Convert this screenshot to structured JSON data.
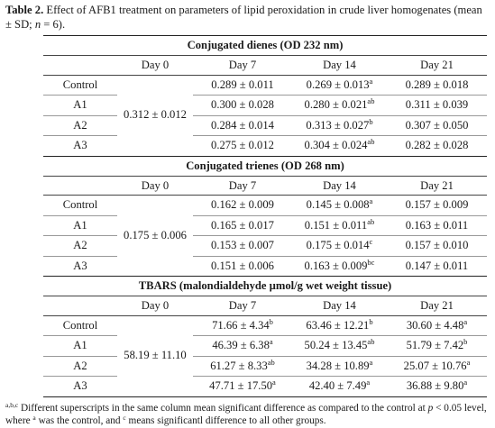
{
  "caption": {
    "label": "Table 2.",
    "text_part1": " Effect of AFB1 treatment on parameters of lipid peroxidation in crude liver homogenates (mean ± SD; ",
    "n_symbol": "n",
    "text_part2": " = 6)."
  },
  "columns": [
    "Day 0",
    "Day 7",
    "Day 14",
    "Day 21"
  ],
  "sections": [
    {
      "title": "Conjugated dienes (OD 232 nm)",
      "day0": "0.312 ± 0.012",
      "rows": [
        {
          "label": "Control",
          "d7": "0.289 ± 0.011",
          "d7s": "",
          "d14": "0.269 ± 0.013",
          "d14s": "a",
          "d21": "0.289 ± 0.018",
          "d21s": ""
        },
        {
          "label": "A1",
          "d7": "0.300 ± 0.028",
          "d7s": "",
          "d14": "0.280 ± 0.021",
          "d14s": "ab",
          "d21": "0.311 ± 0.039",
          "d21s": ""
        },
        {
          "label": "A2",
          "d7": "0.284 ± 0.014",
          "d7s": "",
          "d14": "0.313 ± 0.027",
          "d14s": "b",
          "d21": "0.307 ± 0.050",
          "d21s": ""
        },
        {
          "label": "A3",
          "d7": "0.275 ± 0.012",
          "d7s": "",
          "d14": "0.304 ± 0.024",
          "d14s": "ab",
          "d21": "0.282 ± 0.028",
          "d21s": ""
        }
      ]
    },
    {
      "title": "Conjugated trienes (OD 268 nm)",
      "day0": "0.175 ± 0.006",
      "rows": [
        {
          "label": "Control",
          "d7": "0.162 ± 0.009",
          "d7s": "",
          "d14": "0.145 ± 0.008",
          "d14s": "a",
          "d21": "0.157 ± 0.009",
          "d21s": ""
        },
        {
          "label": "A1",
          "d7": "0.165 ± 0.017",
          "d7s": "",
          "d14": "0.151 ± 0.011",
          "d14s": "ab",
          "d21": "0.163 ± 0.011",
          "d21s": ""
        },
        {
          "label": "A2",
          "d7": "0.153 ± 0.007",
          "d7s": "",
          "d14": "0.175 ± 0.014",
          "d14s": "c",
          "d21": "0.157 ± 0.010",
          "d21s": ""
        },
        {
          "label": "A3",
          "d7": "0.151 ± 0.006",
          "d7s": "",
          "d14": "0.163 ± 0.009",
          "d14s": "bc",
          "d21": "0.147 ± 0.011",
          "d21s": ""
        }
      ]
    },
    {
      "title": "TBARS (malondialdehyde µmol/g wet weight tissue)",
      "day0": "58.19 ± 11.10",
      "rows": [
        {
          "label": "Control",
          "d7": "71.66 ± 4.34",
          "d7s": "b",
          "d14": "63.46 ± 12.21",
          "d14s": "b",
          "d21": "30.60 ± 4.48",
          "d21s": "a"
        },
        {
          "label": "A1",
          "d7": "46.39 ± 6.38",
          "d7s": "a",
          "d14": "50.24 ± 13.45",
          "d14s": "ab",
          "d21": "51.79 ± 7.42",
          "d21s": "b"
        },
        {
          "label": "A2",
          "d7": "61.27 ± 8.33",
          "d7s": "ab",
          "d14": "34.28 ± 10.89",
          "d14s": "a",
          "d21": "25.07 ± 10.76",
          "d21s": "a"
        },
        {
          "label": "A3",
          "d7": "47.71 ± 17.50",
          "d7s": "a",
          "d14": "42.40 ± 7.49",
          "d14s": "a",
          "d21": "36.88 ± 9.80",
          "d21s": "a"
        }
      ]
    }
  ],
  "footnote": {
    "sup_abc": "a,b,c",
    "text1": " Different superscripts in the same column mean significant difference as compared to the control at ",
    "p_symbol": "p",
    "text2": " < 0.05 level, where ",
    "sup_a": "a",
    "text3": " was the control, and ",
    "sup_c": "c",
    "text4": " means significantl difference to all other groups."
  }
}
